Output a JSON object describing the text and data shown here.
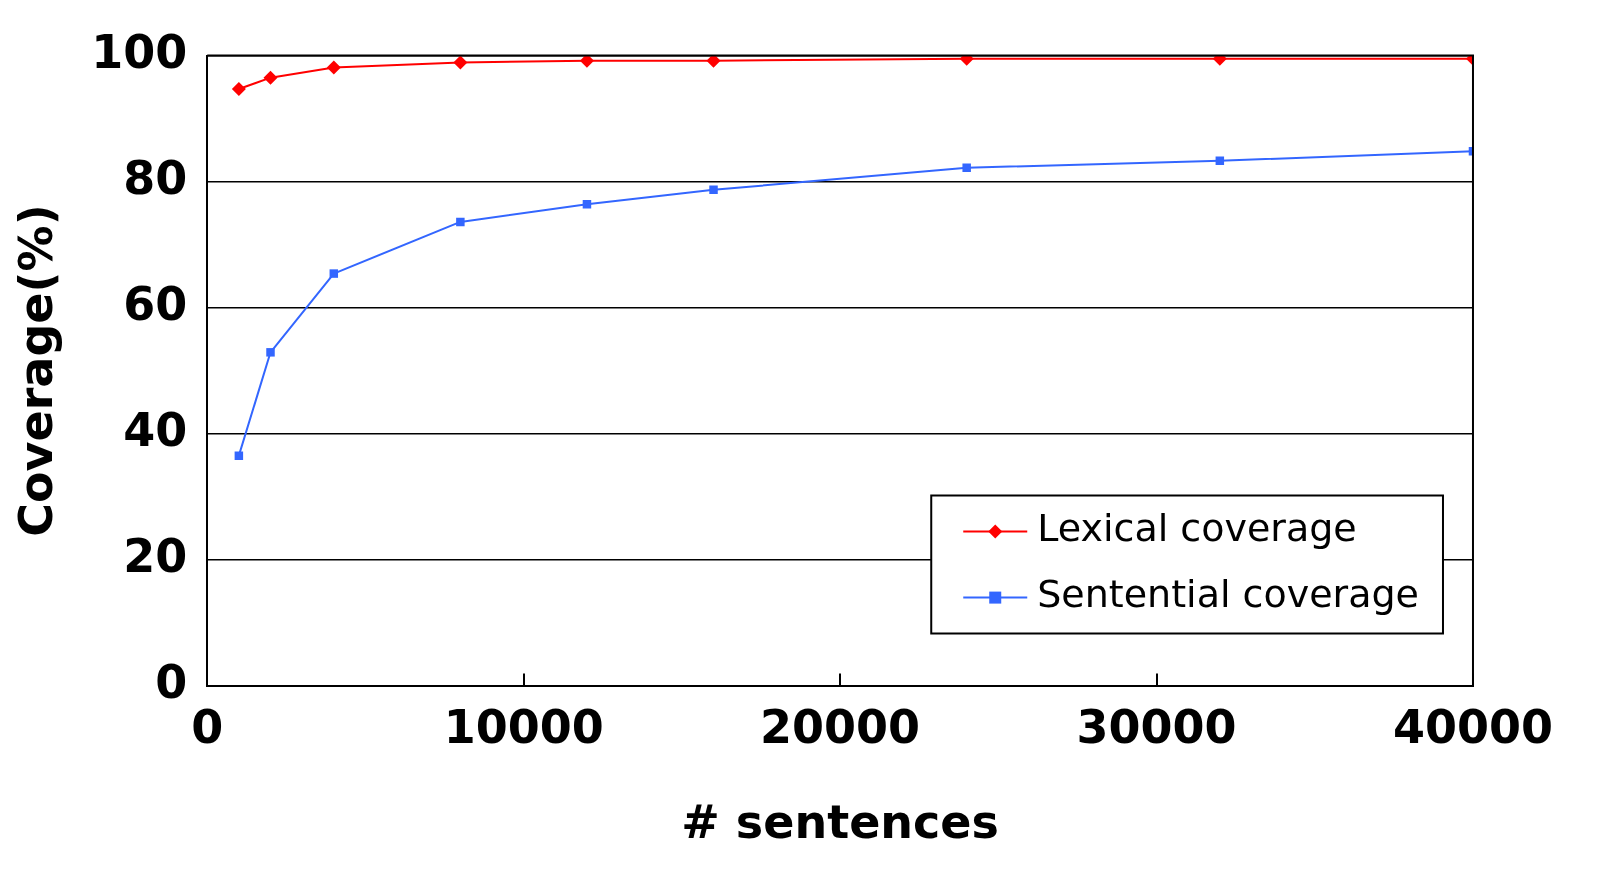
{
  "chart_data": {
    "type": "line",
    "xlabel": "# sentences",
    "ylabel": "Coverage(%)",
    "xlim": [
      0,
      40000
    ],
    "xticks": [
      0,
      10000,
      20000,
      30000,
      40000
    ],
    "ylim": [
      0,
      100
    ],
    "yticks": [
      0,
      20,
      40,
      60,
      80,
      100
    ],
    "grid": "y",
    "legend": "bottom right",
    "series": [
      {
        "name": "Lexical coverage",
        "color": "#ff0000",
        "marker": "diamond",
        "x": [
          1000,
          2000,
          4000,
          8000,
          12000,
          16000,
          24000,
          32000,
          40000
        ],
        "values": [
          94.7,
          96.5,
          98.1,
          98.9,
          99.2,
          99.2,
          99.5,
          99.5,
          99.5
        ]
      },
      {
        "name": "Sentential coverage",
        "color": "#3366ff",
        "marker": "square",
        "x": [
          1000,
          2000,
          4000,
          8000,
          12000,
          16000,
          24000,
          32000,
          40000
        ],
        "values": [
          36.5,
          52.9,
          65.4,
          73.6,
          76.4,
          78.7,
          82.2,
          83.3,
          84.8
        ]
      }
    ]
  }
}
